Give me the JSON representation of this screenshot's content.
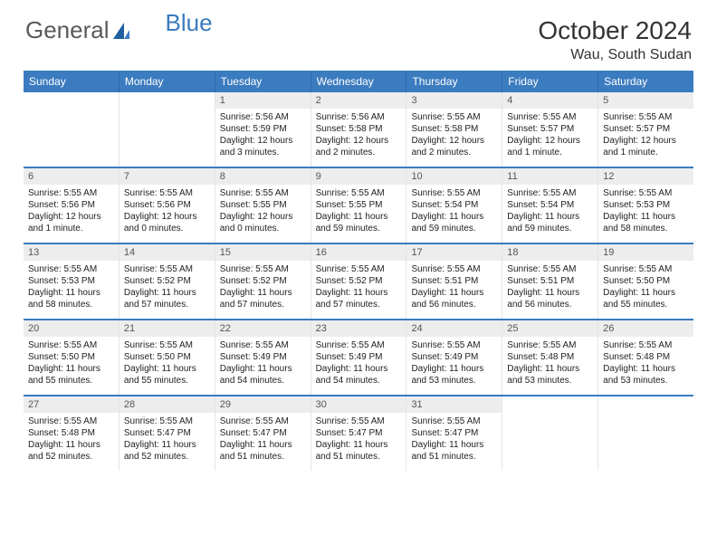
{
  "logo": {
    "part1": "General",
    "part2": "Blue"
  },
  "title": "October 2024",
  "location": "Wau, South Sudan",
  "colors": {
    "header_bg": "#3b7bbf",
    "row_divider": "#3b7bbf",
    "daynum_bg": "#ededed",
    "text": "#222222"
  },
  "dow": [
    "Sunday",
    "Monday",
    "Tuesday",
    "Wednesday",
    "Thursday",
    "Friday",
    "Saturday"
  ],
  "weeks": [
    [
      null,
      null,
      {
        "n": "1",
        "sr": "5:56 AM",
        "ss": "5:59 PM",
        "dl": "12 hours and 3 minutes."
      },
      {
        "n": "2",
        "sr": "5:56 AM",
        "ss": "5:58 PM",
        "dl": "12 hours and 2 minutes."
      },
      {
        "n": "3",
        "sr": "5:55 AM",
        "ss": "5:58 PM",
        "dl": "12 hours and 2 minutes."
      },
      {
        "n": "4",
        "sr": "5:55 AM",
        "ss": "5:57 PM",
        "dl": "12 hours and 1 minute."
      },
      {
        "n": "5",
        "sr": "5:55 AM",
        "ss": "5:57 PM",
        "dl": "12 hours and 1 minute."
      }
    ],
    [
      {
        "n": "6",
        "sr": "5:55 AM",
        "ss": "5:56 PM",
        "dl": "12 hours and 1 minute."
      },
      {
        "n": "7",
        "sr": "5:55 AM",
        "ss": "5:56 PM",
        "dl": "12 hours and 0 minutes."
      },
      {
        "n": "8",
        "sr": "5:55 AM",
        "ss": "5:55 PM",
        "dl": "12 hours and 0 minutes."
      },
      {
        "n": "9",
        "sr": "5:55 AM",
        "ss": "5:55 PM",
        "dl": "11 hours and 59 minutes."
      },
      {
        "n": "10",
        "sr": "5:55 AM",
        "ss": "5:54 PM",
        "dl": "11 hours and 59 minutes."
      },
      {
        "n": "11",
        "sr": "5:55 AM",
        "ss": "5:54 PM",
        "dl": "11 hours and 59 minutes."
      },
      {
        "n": "12",
        "sr": "5:55 AM",
        "ss": "5:53 PM",
        "dl": "11 hours and 58 minutes."
      }
    ],
    [
      {
        "n": "13",
        "sr": "5:55 AM",
        "ss": "5:53 PM",
        "dl": "11 hours and 58 minutes."
      },
      {
        "n": "14",
        "sr": "5:55 AM",
        "ss": "5:52 PM",
        "dl": "11 hours and 57 minutes."
      },
      {
        "n": "15",
        "sr": "5:55 AM",
        "ss": "5:52 PM",
        "dl": "11 hours and 57 minutes."
      },
      {
        "n": "16",
        "sr": "5:55 AM",
        "ss": "5:52 PM",
        "dl": "11 hours and 57 minutes."
      },
      {
        "n": "17",
        "sr": "5:55 AM",
        "ss": "5:51 PM",
        "dl": "11 hours and 56 minutes."
      },
      {
        "n": "18",
        "sr": "5:55 AM",
        "ss": "5:51 PM",
        "dl": "11 hours and 56 minutes."
      },
      {
        "n": "19",
        "sr": "5:55 AM",
        "ss": "5:50 PM",
        "dl": "11 hours and 55 minutes."
      }
    ],
    [
      {
        "n": "20",
        "sr": "5:55 AM",
        "ss": "5:50 PM",
        "dl": "11 hours and 55 minutes."
      },
      {
        "n": "21",
        "sr": "5:55 AM",
        "ss": "5:50 PM",
        "dl": "11 hours and 55 minutes."
      },
      {
        "n": "22",
        "sr": "5:55 AM",
        "ss": "5:49 PM",
        "dl": "11 hours and 54 minutes."
      },
      {
        "n": "23",
        "sr": "5:55 AM",
        "ss": "5:49 PM",
        "dl": "11 hours and 54 minutes."
      },
      {
        "n": "24",
        "sr": "5:55 AM",
        "ss": "5:49 PM",
        "dl": "11 hours and 53 minutes."
      },
      {
        "n": "25",
        "sr": "5:55 AM",
        "ss": "5:48 PM",
        "dl": "11 hours and 53 minutes."
      },
      {
        "n": "26",
        "sr": "5:55 AM",
        "ss": "5:48 PM",
        "dl": "11 hours and 53 minutes."
      }
    ],
    [
      {
        "n": "27",
        "sr": "5:55 AM",
        "ss": "5:48 PM",
        "dl": "11 hours and 52 minutes."
      },
      {
        "n": "28",
        "sr": "5:55 AM",
        "ss": "5:47 PM",
        "dl": "11 hours and 52 minutes."
      },
      {
        "n": "29",
        "sr": "5:55 AM",
        "ss": "5:47 PM",
        "dl": "11 hours and 51 minutes."
      },
      {
        "n": "30",
        "sr": "5:55 AM",
        "ss": "5:47 PM",
        "dl": "11 hours and 51 minutes."
      },
      {
        "n": "31",
        "sr": "5:55 AM",
        "ss": "5:47 PM",
        "dl": "11 hours and 51 minutes."
      },
      null,
      null
    ]
  ],
  "labels": {
    "sunrise": "Sunrise:",
    "sunset": "Sunset:",
    "daylight": "Daylight:"
  }
}
